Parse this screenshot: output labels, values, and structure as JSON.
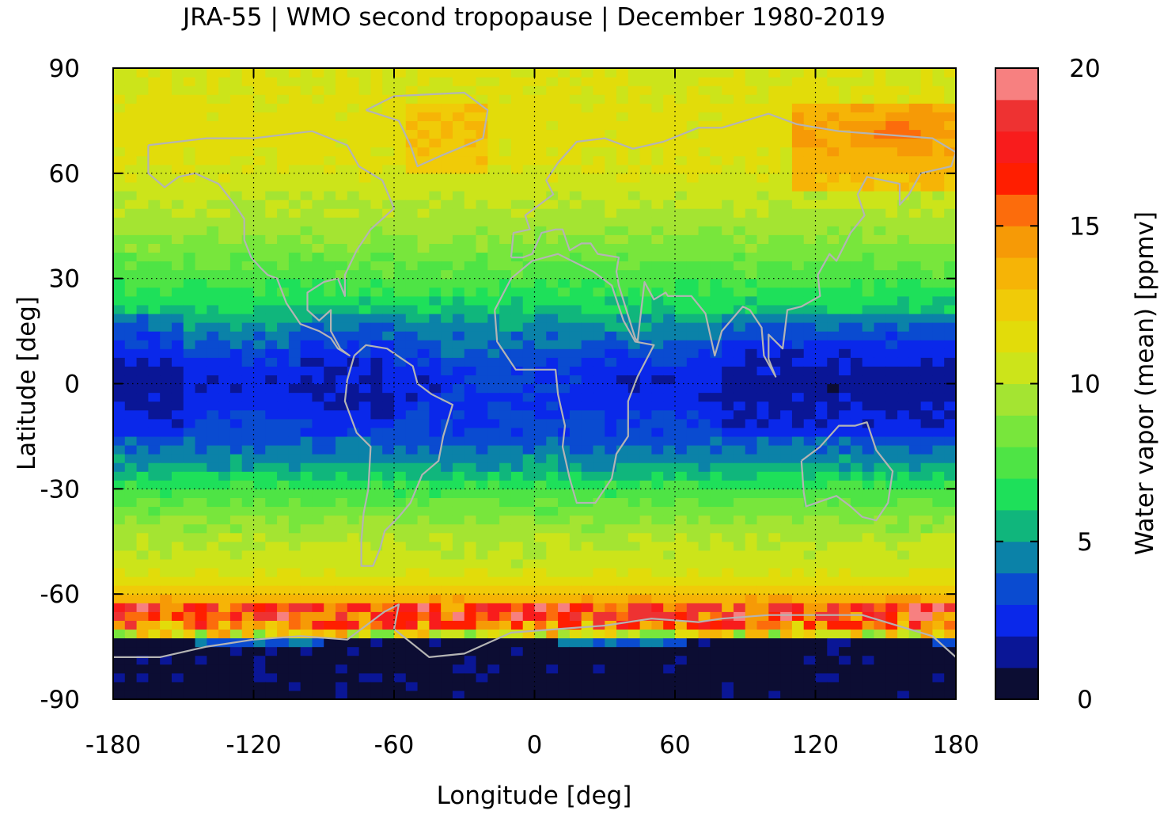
{
  "chart_data": {
    "type": "heatmap",
    "title": "JRA-55 | WMO second tropopause | December 1980-2019",
    "xlabel": "Longitude [deg]",
    "ylabel": "Latitude [deg]",
    "xlim": [
      -180,
      180
    ],
    "ylim": [
      -90,
      90
    ],
    "x_ticks": [
      -180,
      -120,
      -60,
      0,
      60,
      120,
      180
    ],
    "x_tick_labels": [
      "-180",
      "-120",
      "-60",
      "0",
      "60",
      "120",
      "180"
    ],
    "y_ticks": [
      90,
      60,
      30,
      0,
      -30,
      -60,
      -90
    ],
    "y_tick_labels": [
      "90",
      "60",
      "30",
      "0",
      "-30",
      "-60",
      "-90"
    ],
    "grid": true,
    "coastlines": true,
    "colorbar": {
      "label": "Water vapor (mean) [ppmv]",
      "range": [
        0,
        20
      ],
      "ticks": [
        0,
        5,
        10,
        15,
        20
      ],
      "tick_labels": [
        "0",
        "5",
        "10",
        "15",
        "20"
      ],
      "placement": "right",
      "levels": [
        0,
        1,
        2,
        3,
        4,
        5,
        6,
        7,
        8,
        9,
        10,
        11,
        12,
        13,
        14,
        15,
        16,
        17,
        18,
        19,
        20
      ],
      "colors": [
        "#0c0d33",
        "#0a1696",
        "#0a28ea",
        "#0a4bd0",
        "#0b82a8",
        "#10b67c",
        "#1ee05a",
        "#4ee445",
        "#78e63c",
        "#a4e432",
        "#cce41a",
        "#e2dc0a",
        "#f0cb08",
        "#f6b406",
        "#f69a06",
        "#fc6c0c",
        "#ff1e00",
        "#f81c1c",
        "#ee3232",
        "#f78080",
        "#ffc8c8"
      ]
    },
    "zonal_profile_ppmv": {
      "latitudes": [
        -90,
        -85,
        -80,
        -75,
        -70,
        -65,
        -60,
        -55,
        -50,
        -45,
        -40,
        -35,
        -30,
        -25,
        -20,
        -15,
        -10,
        -5,
        0,
        5,
        10,
        15,
        20,
        25,
        30,
        35,
        40,
        45,
        50,
        55,
        60,
        65,
        70,
        75,
        80,
        85,
        90
      ],
      "values": [
        1.5,
        0.5,
        0.5,
        1.0,
        13.0,
        16.0,
        13.0,
        11.0,
        10.3,
        10.0,
        9.2,
        8.2,
        7.2,
        5.5,
        4.3,
        3.5,
        3.0,
        2.5,
        2.3,
        2.6,
        3.4,
        4.4,
        5.6,
        6.6,
        7.4,
        8.0,
        8.8,
        9.4,
        9.9,
        10.4,
        10.8,
        11.2,
        11.5,
        11.4,
        11.2,
        11.0,
        10.8
      ]
    }
  }
}
